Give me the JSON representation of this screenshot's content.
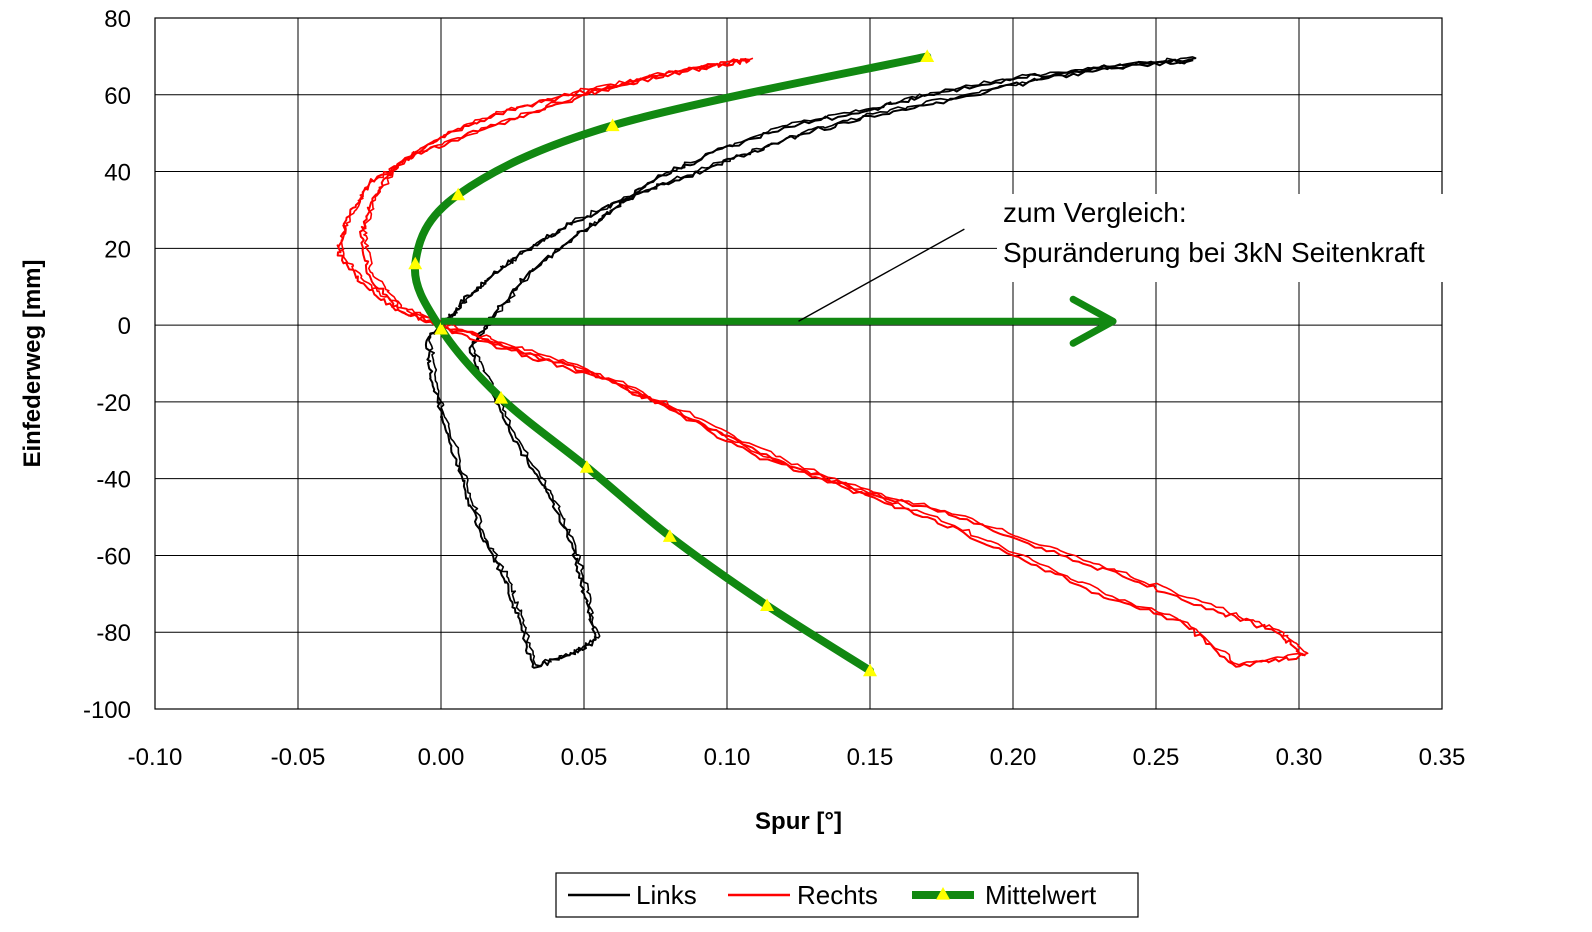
{
  "chart_data": {
    "type": "line",
    "title": "",
    "xlabel": "Spur [°]",
    "ylabel": "Einfederweg [mm]",
    "xlim": [
      -0.1,
      0.35
    ],
    "ylim": [
      -100,
      80
    ],
    "x_ticks": [
      "-0.10",
      "-0.05",
      "0.00",
      "0.05",
      "0.10",
      "0.15",
      "0.20",
      "0.25",
      "0.30",
      "0.35"
    ],
    "y_ticks": [
      "80",
      "60",
      "40",
      "20",
      "0",
      "-20",
      "-40",
      "-60",
      "-80",
      "-100"
    ],
    "grid": true,
    "legend_position": "bottom-center",
    "series": [
      {
        "name": "Links",
        "color": "#000000",
        "style": "thin-noisy-loop",
        "points": [
          [
            0.263,
            69
          ],
          [
            0.24,
            67.5
          ],
          [
            0.21,
            64
          ],
          [
            0.18,
            59
          ],
          [
            0.15,
            54.5
          ],
          [
            0.125,
            49.5
          ],
          [
            0.105,
            44
          ],
          [
            0.085,
            38.5
          ],
          [
            0.065,
            33
          ],
          [
            0.045,
            26.5
          ],
          [
            0.03,
            19.5
          ],
          [
            0.018,
            13
          ],
          [
            0.008,
            6.5
          ],
          [
            0.003,
            2
          ],
          [
            -0.005,
            -4
          ],
          [
            -0.003,
            -15
          ],
          [
            0.002,
            -28
          ],
          [
            0.008,
            -42
          ],
          [
            0.014,
            -55
          ],
          [
            0.022,
            -66
          ],
          [
            0.027,
            -76
          ],
          [
            0.032,
            -89
          ],
          [
            0.045,
            -86
          ],
          [
            0.054,
            -82
          ],
          [
            0.05,
            -70
          ],
          [
            0.046,
            -58
          ],
          [
            0.038,
            -45
          ],
          [
            0.028,
            -33
          ],
          [
            0.018,
            -18
          ],
          [
            0.01,
            -6
          ],
          [
            0.018,
            2
          ],
          [
            0.03,
            13
          ],
          [
            0.045,
            22
          ],
          [
            0.06,
            30
          ],
          [
            0.075,
            38
          ],
          [
            0.095,
            45
          ],
          [
            0.12,
            51.5
          ],
          [
            0.15,
            56
          ],
          [
            0.17,
            60
          ],
          [
            0.2,
            64
          ],
          [
            0.23,
            67
          ],
          [
            0.263,
            69
          ]
        ]
      },
      {
        "name": "Rechts",
        "color": "#ff0000",
        "style": "thin-noisy-loop",
        "points": [
          [
            0.108,
            69
          ],
          [
            0.09,
            67
          ],
          [
            0.065,
            63
          ],
          [
            0.04,
            57.5
          ],
          [
            0.015,
            51
          ],
          [
            -0.01,
            44
          ],
          [
            -0.025,
            37
          ],
          [
            -0.033,
            28
          ],
          [
            -0.036,
            19
          ],
          [
            -0.028,
            11
          ],
          [
            -0.015,
            4
          ],
          [
            0.0,
            0
          ],
          [
            0.02,
            -5
          ],
          [
            0.05,
            -12
          ],
          [
            0.08,
            -22
          ],
          [
            0.11,
            -34
          ],
          [
            0.14,
            -42
          ],
          [
            0.17,
            -50
          ],
          [
            0.2,
            -60
          ],
          [
            0.23,
            -70
          ],
          [
            0.26,
            -78
          ],
          [
            0.278,
            -89
          ],
          [
            0.302,
            -86
          ],
          [
            0.292,
            -80
          ],
          [
            0.27,
            -74
          ],
          [
            0.24,
            -66
          ],
          [
            0.21,
            -58
          ],
          [
            0.18,
            -50
          ],
          [
            0.15,
            -44
          ],
          [
            0.12,
            -36
          ],
          [
            0.09,
            -25
          ],
          [
            0.06,
            -15
          ],
          [
            0.03,
            -8
          ],
          [
            0.005,
            -2
          ],
          [
            -0.015,
            4
          ],
          [
            -0.025,
            13
          ],
          [
            -0.028,
            23
          ],
          [
            -0.024,
            33
          ],
          [
            -0.015,
            42
          ],
          [
            0.0,
            49
          ],
          [
            0.02,
            55
          ],
          [
            0.045,
            60
          ],
          [
            0.07,
            64
          ],
          [
            0.095,
            67.5
          ],
          [
            0.108,
            69
          ]
        ]
      },
      {
        "name": "Mittelwert",
        "color": "#118811",
        "marker": "triangle",
        "marker_color": "#ffff00",
        "points": [
          [
            0.17,
            70
          ],
          [
            0.06,
            52
          ],
          [
            0.006,
            34
          ],
          [
            -0.009,
            16
          ],
          [
            0.0,
            -1
          ],
          [
            0.021,
            -19
          ],
          [
            0.051,
            -37
          ],
          [
            0.08,
            -55
          ],
          [
            0.114,
            -73
          ],
          [
            0.15,
            -90
          ]
        ]
      }
    ],
    "annotation": {
      "lines": [
        "zum Vergleich:",
        "Spuränderung bei 3kN Seitenkraft"
      ],
      "arrow_from": [
        0.0,
        1
      ],
      "arrow_to": [
        0.235,
        1
      ],
      "leader_from": [
        0.125,
        1
      ],
      "leader_to": [
        0.183,
        25
      ]
    }
  }
}
